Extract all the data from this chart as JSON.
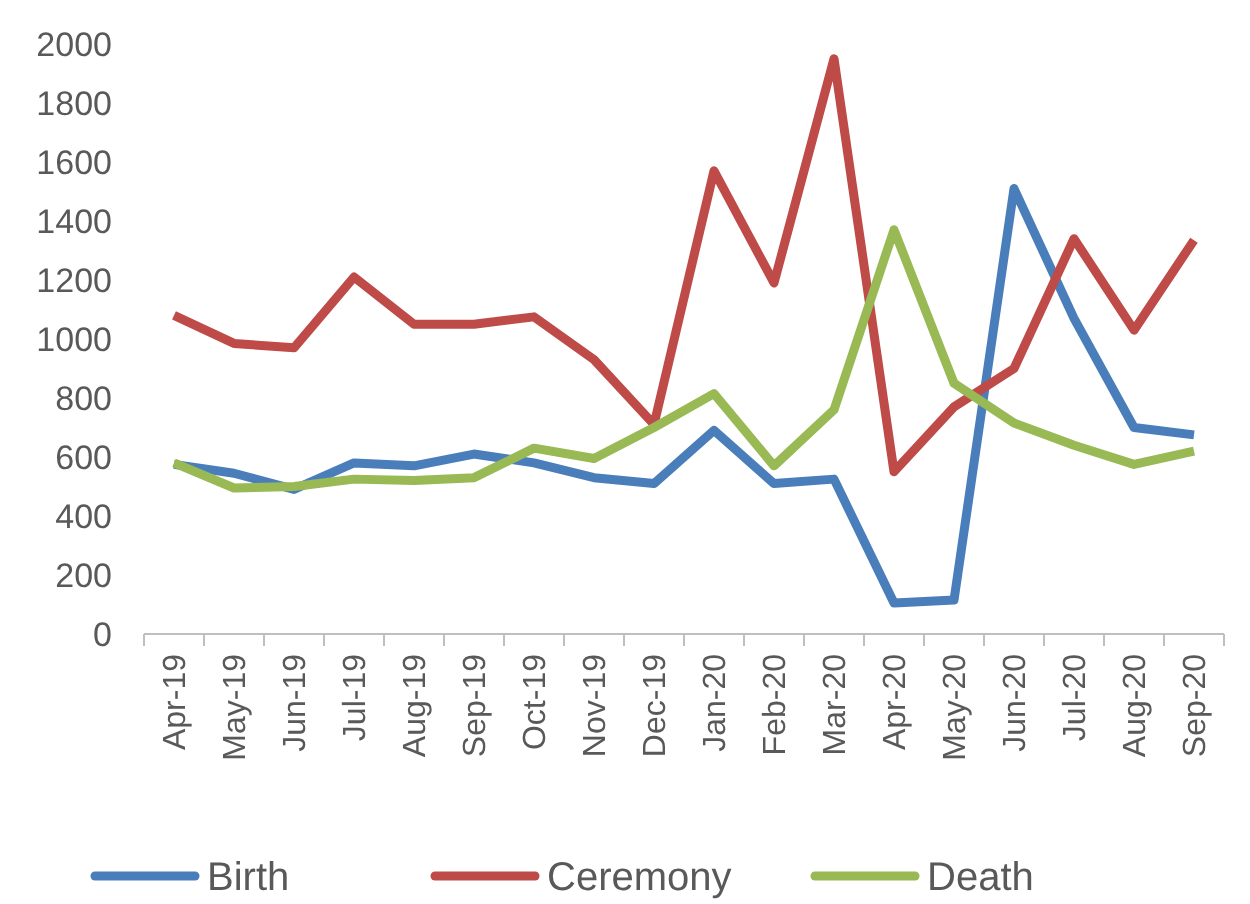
{
  "chart_data": {
    "type": "line",
    "categories": [
      "Apr-19",
      "May-19",
      "Jun-19",
      "Jul-19",
      "Aug-19",
      "Sep-19",
      "Oct-19",
      "Nov-19",
      "Dec-19",
      "Jan-20",
      "Feb-20",
      "Mar-20",
      "Apr-20",
      "May-20",
      "Jun-20",
      "Jul-20",
      "Aug-20",
      "Sep-20"
    ],
    "series": [
      {
        "name": "Birth",
        "color": "#4a7ebb",
        "values": [
          575,
          545,
          490,
          580,
          570,
          610,
          580,
          530,
          510,
          690,
          510,
          525,
          105,
          115,
          1510,
          1070,
          700,
          675
        ]
      },
      {
        "name": "Ceremony",
        "color": "#be4b48",
        "values": [
          1080,
          985,
          970,
          1210,
          1050,
          1050,
          1075,
          930,
          710,
          1570,
          1190,
          1950,
          550,
          770,
          900,
          1340,
          1030,
          1335
        ]
      },
      {
        "name": "Death",
        "color": "#98b954",
        "values": [
          580,
          495,
          500,
          525,
          520,
          530,
          630,
          595,
          700,
          815,
          570,
          760,
          1370,
          850,
          715,
          640,
          575,
          620
        ]
      }
    ],
    "ylim": [
      0,
      2000
    ],
    "yticks": [
      0,
      200,
      400,
      600,
      800,
      1000,
      1200,
      1400,
      1600,
      1800,
      2000
    ],
    "grid": false,
    "legend": "bottom",
    "marker": "none",
    "line_style": "solid"
  }
}
